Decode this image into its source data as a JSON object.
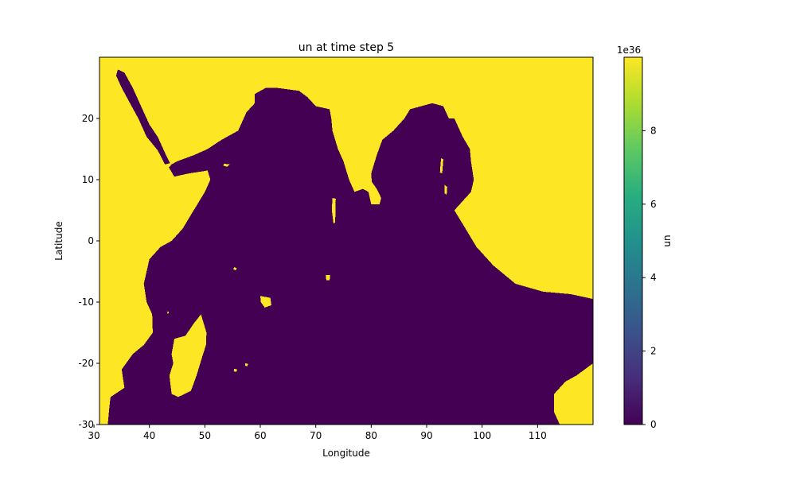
{
  "chart_data": {
    "type": "heatmap",
    "title": "un at time step 5",
    "xlabel": "Longitude",
    "ylabel": "Latitude",
    "xlim": [
      31,
      120
    ],
    "ylim": [
      -30,
      30
    ],
    "x_ticks": [
      30,
      40,
      50,
      60,
      70,
      80,
      90,
      100,
      110
    ],
    "y_ticks": [
      -30,
      -20,
      -10,
      0,
      10,
      20
    ],
    "colorbar": {
      "label": "un",
      "scale_text": "1e36",
      "range": [
        0,
        10
      ],
      "ticks": [
        0,
        2,
        4,
        6,
        8
      ],
      "colormap": "viridis"
    },
    "values": {
      "land_value": "~1e37 (fill value)",
      "ocean_value": 0
    },
    "colors": {
      "land": "#fde725",
      "ocean": "#440154"
    },
    "ocean_regions": [
      {
        "name": "Red Sea",
        "lonlat": [
          [
            34.3,
            28
          ],
          [
            35.5,
            27.5
          ],
          [
            37,
            25
          ],
          [
            38.5,
            22
          ],
          [
            40,
            19
          ],
          [
            41.5,
            17
          ],
          [
            43,
            14
          ],
          [
            43.7,
            12.7
          ],
          [
            42.8,
            12.5
          ],
          [
            41.5,
            14.8
          ],
          [
            39.5,
            17
          ],
          [
            38,
            20
          ],
          [
            36.5,
            22.5
          ],
          [
            35,
            25
          ],
          [
            34,
            27
          ]
        ]
      },
      {
        "name": "Indian Ocean",
        "lonlat": [
          [
            32,
            -30
          ],
          [
            114,
            -30
          ],
          [
            113,
            -28
          ],
          [
            113,
            -25
          ],
          [
            115,
            -23
          ],
          [
            117,
            -22
          ],
          [
            120,
            -20
          ],
          [
            120,
            -9.5
          ],
          [
            116,
            -8.7
          ],
          [
            111,
            -8.3
          ],
          [
            106,
            -7
          ],
          [
            102,
            -4
          ],
          [
            99,
            -1
          ],
          [
            97,
            2
          ],
          [
            95,
            5
          ],
          [
            98,
            8
          ],
          [
            98.5,
            10
          ],
          [
            98,
            13
          ],
          [
            97.8,
            15
          ],
          [
            96.5,
            17
          ],
          [
            95,
            20
          ],
          [
            94,
            20
          ],
          [
            93,
            22
          ],
          [
            91,
            22.5
          ],
          [
            89,
            22
          ],
          [
            87,
            21.5
          ],
          [
            86,
            20
          ],
          [
            84,
            18
          ],
          [
            82,
            16.5
          ],
          [
            81,
            14
          ],
          [
            80,
            11
          ],
          [
            80.2,
            8.5
          ],
          [
            81.8,
            7
          ],
          [
            81.5,
            6
          ],
          [
            80,
            6
          ],
          [
            79.5,
            8
          ],
          [
            78.5,
            8.5
          ],
          [
            77,
            8
          ],
          [
            76,
            10
          ],
          [
            75,
            13
          ],
          [
            74,
            15
          ],
          [
            73,
            18
          ],
          [
            72.8,
            20
          ],
          [
            72.5,
            21.5
          ],
          [
            70,
            22
          ],
          [
            68.5,
            23.5
          ],
          [
            67,
            24.5
          ],
          [
            63,
            25
          ],
          [
            61,
            25
          ],
          [
            59,
            24
          ],
          [
            59,
            22.5
          ],
          [
            57.5,
            21
          ],
          [
            56,
            18
          ],
          [
            53,
            16.5
          ],
          [
            50.5,
            15
          ],
          [
            48,
            14
          ],
          [
            45,
            13
          ],
          [
            44,
            12.5
          ],
          [
            43.5,
            12
          ],
          [
            44.5,
            10.5
          ],
          [
            47,
            11
          ],
          [
            50.5,
            11.5
          ],
          [
            51,
            10
          ],
          [
            50,
            8
          ],
          [
            48,
            5
          ],
          [
            46,
            2
          ],
          [
            44,
            0
          ],
          [
            42,
            -1
          ],
          [
            41,
            -2
          ],
          [
            40,
            -3
          ],
          [
            39.5,
            -5
          ],
          [
            39,
            -7
          ],
          [
            39.5,
            -10
          ],
          [
            40.5,
            -12
          ],
          [
            40.6,
            -15
          ],
          [
            39,
            -17
          ],
          [
            37,
            -18.5
          ],
          [
            35,
            -21
          ],
          [
            35.5,
            -24
          ],
          [
            33,
            -25.5
          ],
          [
            32.8,
            -27
          ],
          [
            32.5,
            -30
          ]
        ]
      }
    ],
    "land_regions": [
      {
        "name": "Madagascar",
        "lonlat": [
          [
            49.3,
            -12
          ],
          [
            50.3,
            -15
          ],
          [
            50.2,
            -17
          ],
          [
            49.5,
            -19
          ],
          [
            48.5,
            -22
          ],
          [
            47.5,
            -24.5
          ],
          [
            45.2,
            -25.5
          ],
          [
            44,
            -25
          ],
          [
            43.6,
            -22
          ],
          [
            44.3,
            -20
          ],
          [
            44,
            -18.5
          ],
          [
            44.5,
            -16
          ],
          [
            46.5,
            -15.5
          ],
          [
            48,
            -13.5
          ]
        ]
      },
      {
        "name": "Sri Lanka",
        "lonlat": [
          [
            80,
            9.8
          ],
          [
            81,
            8.5
          ],
          [
            81.8,
            7
          ],
          [
            81.4,
            6
          ],
          [
            80.2,
            6
          ],
          [
            79.7,
            7.5
          ]
        ]
      },
      {
        "name": "Socotra",
        "lonlat": [
          [
            53.5,
            12.6
          ],
          [
            54.5,
            12.5
          ],
          [
            54,
            12.1
          ],
          [
            53.3,
            12.3
          ]
        ]
      },
      {
        "name": "Seychelles",
        "lonlat": [
          [
            55.3,
            -4.3
          ],
          [
            55.8,
            -4.5
          ],
          [
            55.5,
            -4.8
          ],
          [
            55.1,
            -4.6
          ]
        ]
      },
      {
        "name": "Mauritius",
        "lonlat": [
          [
            57.3,
            -20
          ],
          [
            57.8,
            -20.1
          ],
          [
            57.6,
            -20.5
          ],
          [
            57.3,
            -20.4
          ]
        ]
      },
      {
        "name": "Reunion",
        "lonlat": [
          [
            55.3,
            -20.9
          ],
          [
            55.8,
            -21
          ],
          [
            55.7,
            -21.4
          ],
          [
            55.2,
            -21.3
          ]
        ]
      },
      {
        "name": "Comoros",
        "lonlat": [
          [
            43.3,
            -11.5
          ],
          [
            43.5,
            -11.6
          ],
          [
            43.4,
            -11.9
          ],
          [
            43.2,
            -11.8
          ]
        ]
      },
      {
        "name": "Mascarene Plateau",
        "lonlat": [
          [
            60,
            -9
          ],
          [
            61.8,
            -9.3
          ],
          [
            62,
            -10.5
          ],
          [
            60.8,
            -10.9
          ],
          [
            60.1,
            -10
          ]
        ]
      },
      {
        "name": "Maldives",
        "lonlat": [
          [
            73,
            7
          ],
          [
            73.6,
            6.9
          ],
          [
            73.5,
            3
          ],
          [
            73.2,
            2.8
          ],
          [
            72.9,
            5
          ]
        ]
      },
      {
        "name": "Chagos",
        "lonlat": [
          [
            71.8,
            -5.6
          ],
          [
            72.6,
            -5.6
          ],
          [
            72.5,
            -6.4
          ],
          [
            71.9,
            -6.4
          ]
        ]
      },
      {
        "name": "Andaman Islands",
        "lonlat": [
          [
            92.6,
            13.5
          ],
          [
            93,
            13.3
          ],
          [
            92.8,
            11
          ],
          [
            92.4,
            11.2
          ]
        ]
      },
      {
        "name": "Nicobar Islands",
        "lonlat": [
          [
            93.2,
            9.2
          ],
          [
            93.7,
            8.8
          ],
          [
            93.6,
            7.5
          ],
          [
            93.2,
            7.8
          ]
        ]
      }
    ]
  }
}
